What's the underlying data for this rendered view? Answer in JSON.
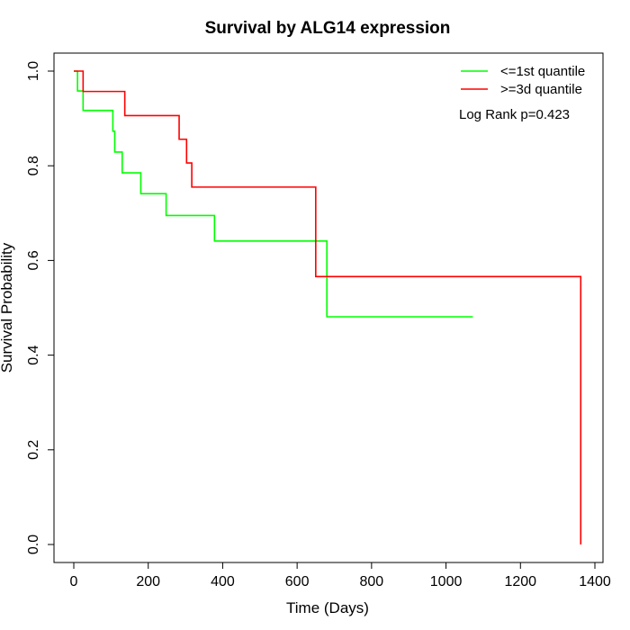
{
  "chart_data": {
    "type": "line",
    "title": "Survival by ALG14 expression",
    "xlabel": "Time (Days)",
    "ylabel": "Survival Probability",
    "xlim": [
      0,
      1400
    ],
    "ylim": [
      0,
      1
    ],
    "x_ticks": [
      0,
      200,
      400,
      600,
      800,
      1000,
      1200,
      1400
    ],
    "y_ticks": [
      0.0,
      0.2,
      0.4,
      0.6,
      0.8,
      1.0
    ],
    "x_tick_labels": [
      "0",
      "200",
      "400",
      "600",
      "800",
      "1000",
      "1200",
      "1400"
    ],
    "y_tick_labels": [
      "0.0",
      "0.2",
      "0.4",
      "0.6",
      "0.8",
      "1.0"
    ],
    "grid": false,
    "legend_position": "top-right",
    "annotation": "Log Rank p=0.423",
    "series": [
      {
        "name": "<=1st quantile",
        "color": "#00ff00",
        "step": true,
        "points": [
          [
            0,
            1.0
          ],
          [
            10,
            0.958
          ],
          [
            25,
            0.917
          ],
          [
            105,
            0.873
          ],
          [
            110,
            0.829
          ],
          [
            130,
            0.785
          ],
          [
            180,
            0.741
          ],
          [
            248,
            0.695
          ],
          [
            378,
            0.641
          ],
          [
            680,
            0.481
          ],
          [
            1072,
            0.481
          ]
        ]
      },
      {
        "name": ">=3d quantile",
        "color": "#ff0000",
        "step": true,
        "points": [
          [
            0,
            1.0
          ],
          [
            25,
            0.957
          ],
          [
            137,
            0.906
          ],
          [
            283,
            0.856
          ],
          [
            303,
            0.806
          ],
          [
            317,
            0.755
          ],
          [
            650,
            0.566
          ],
          [
            1362,
            0.0
          ]
        ]
      }
    ]
  }
}
